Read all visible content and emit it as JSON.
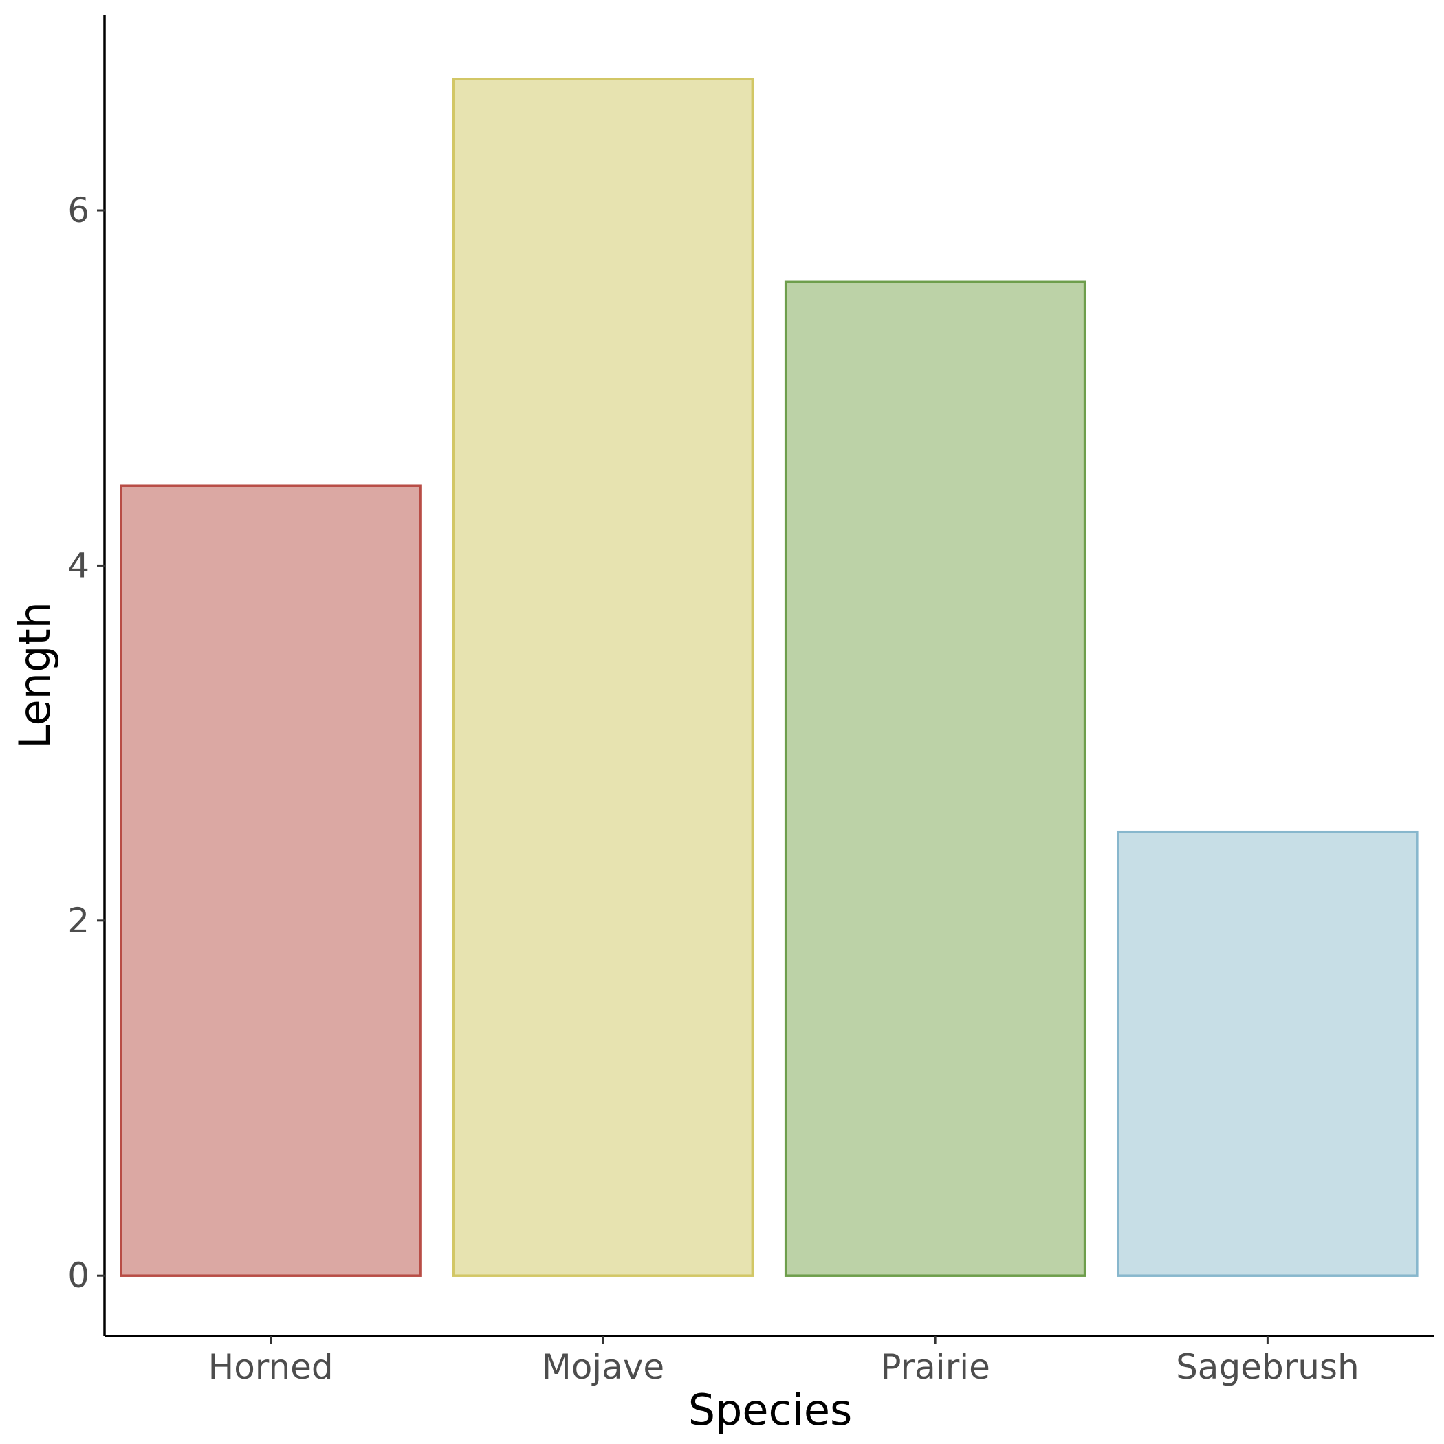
{
  "chart_data": {
    "type": "bar",
    "categories": [
      "Horned",
      "Mojave",
      "Prairie",
      "Sagebrush"
    ],
    "values": [
      4.45,
      6.74,
      5.6,
      2.5
    ],
    "fill_colors": [
      "#dba8a3",
      "#e7e3b0",
      "#bcd2a7",
      "#c7dee6"
    ],
    "stroke_colors": [
      "#b84d46",
      "#d2c766",
      "#6e9e4c",
      "#88b7cd"
    ],
    "xlabel": "Species",
    "ylabel": "Length",
    "yticks": [
      0,
      2,
      4,
      6
    ],
    "ylim": [
      -0.34,
      7.1
    ],
    "grid": false,
    "legend": "none"
  }
}
